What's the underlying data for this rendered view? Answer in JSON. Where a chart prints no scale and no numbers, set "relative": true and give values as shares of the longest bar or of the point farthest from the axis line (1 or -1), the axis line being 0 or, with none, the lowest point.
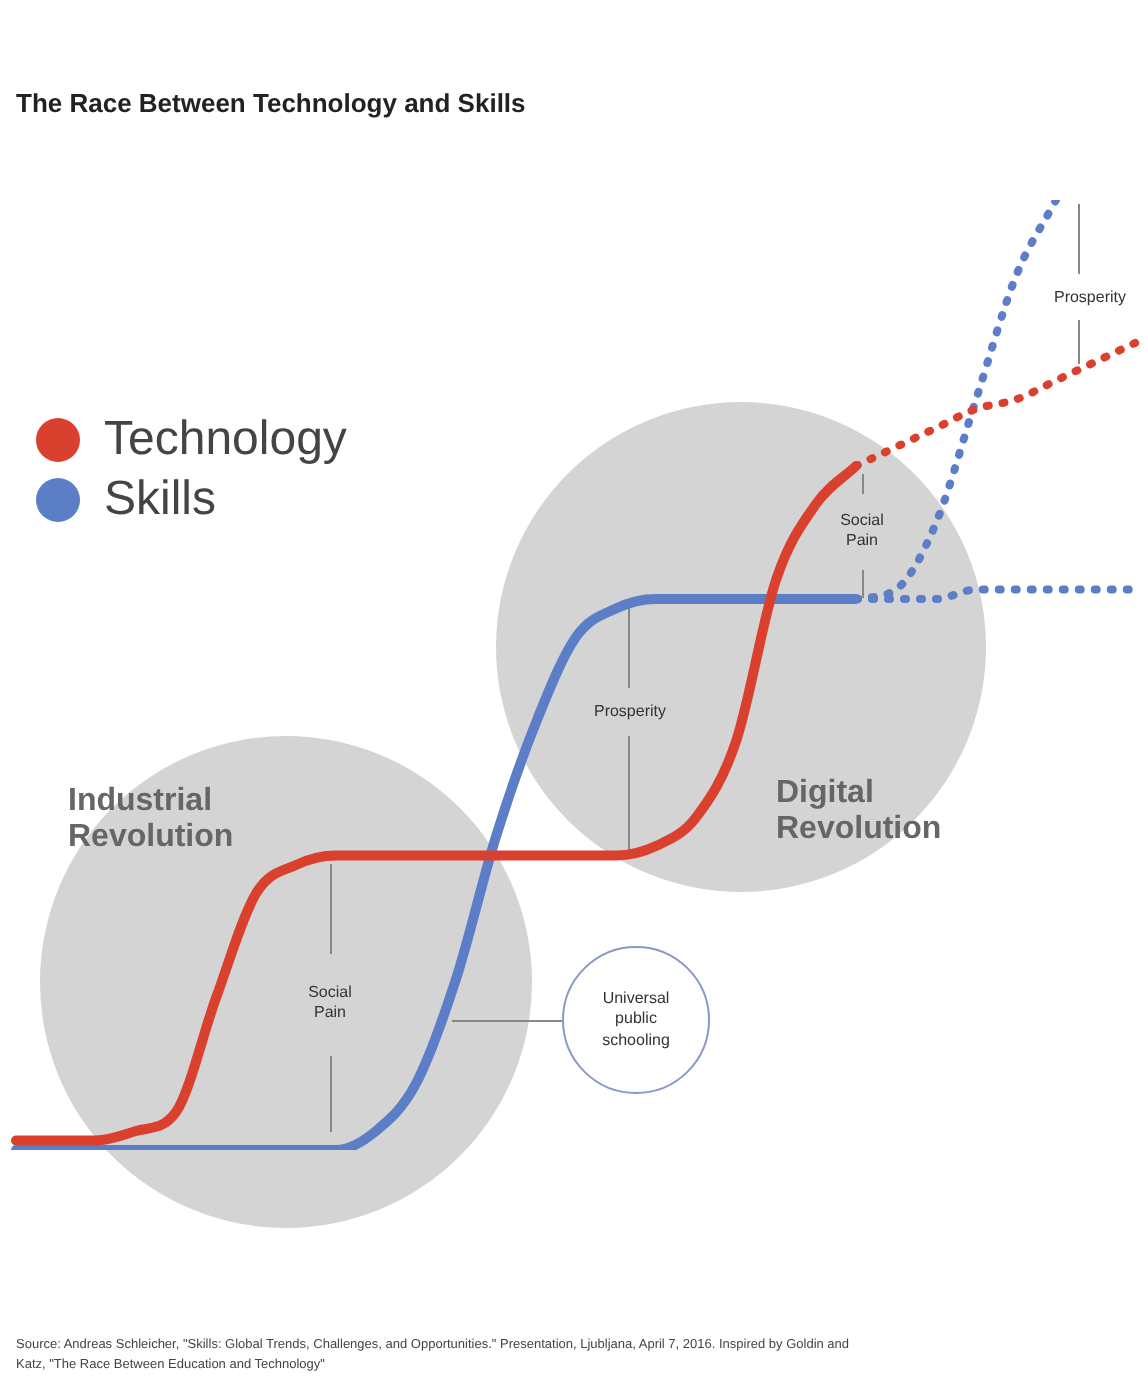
{
  "chart_data": {
    "type": "line",
    "title": "The Race Between Technology and Skills",
    "relative": true,
    "marker": "none",
    "legend": "top left",
    "categories": [
      null,
      null,
      null,
      null,
      null,
      null,
      null,
      null,
      null,
      null,
      null,
      null,
      null,
      null,
      null,
      null,
      null,
      null,
      null,
      null,
      null,
      null,
      null,
      null,
      null,
      null,
      null,
      null,
      null
    ],
    "series": [
      {
        "name": "Technology",
        "color": "#d9412e",
        "line_style": "solid",
        "values": [
          0.01,
          0.01,
          0.01,
          0.02,
          0.04,
          0.16,
          0.27,
          0.3,
          0.31,
          0.31,
          0.31,
          0.31,
          0.31,
          0.31,
          0.31,
          0.31,
          0.32,
          0.35,
          0.43,
          0.6,
          0.68,
          0.72,
          null,
          null,
          null,
          null,
          null,
          null,
          null
        ]
      },
      {
        "name": "Skills",
        "color": "#5b7ec6",
        "line_style": "solid",
        "values": [
          0,
          0,
          0,
          0,
          0,
          0,
          0,
          0,
          0,
          0.02,
          0.07,
          0.18,
          0.33,
          0.45,
          0.54,
          0.57,
          0.58,
          0.58,
          0.58,
          0.58,
          0.58,
          0.58,
          null,
          null,
          null,
          null,
          null,
          null,
          null
        ]
      },
      {
        "color": "#d9412e",
        "line_style": "dotted",
        "values": [
          null,
          null,
          null,
          null,
          null,
          null,
          null,
          null,
          null,
          null,
          null,
          null,
          null,
          null,
          null,
          null,
          null,
          null,
          null,
          null,
          null,
          0.72,
          0.74,
          0.76,
          0.78,
          0.79,
          0.81,
          0.83,
          0.85
        ]
      },
      {
        "color": "#5b7ec6",
        "line_style": "dotted",
        "values": [
          null,
          null,
          null,
          null,
          null,
          null,
          null,
          null,
          null,
          null,
          null,
          null,
          null,
          null,
          null,
          null,
          null,
          null,
          null,
          null,
          null,
          0.58,
          0.58,
          0.58,
          0.59,
          0.59,
          0.59,
          0.59,
          0.59
        ]
      },
      {
        "color": "#5b7ec6",
        "line_style": "dotted",
        "values": [
          null,
          null,
          null,
          null,
          null,
          null,
          null,
          null,
          null,
          null,
          null,
          null,
          null,
          null,
          null,
          null,
          null,
          null,
          null,
          null,
          null,
          0.58,
          0.59,
          0.66,
          0.79,
          0.92,
          1.0,
          null,
          null
        ]
      }
    ],
    "annotations": [
      "Industrial Revolution",
      "Digital Revolution",
      "Social Pain",
      "Prosperity",
      "Social Pain",
      "Prosperity",
      "Universal public schooling",
      "Source: Andreas Schleicher, \"Skills: Global Trends, Challenges, and Opportunities.\" Presentation, Ljubljana, April 7, 2016. Inspired by Goldin and Katz, \"The Race Between Education and Technology\""
    ]
  }
}
